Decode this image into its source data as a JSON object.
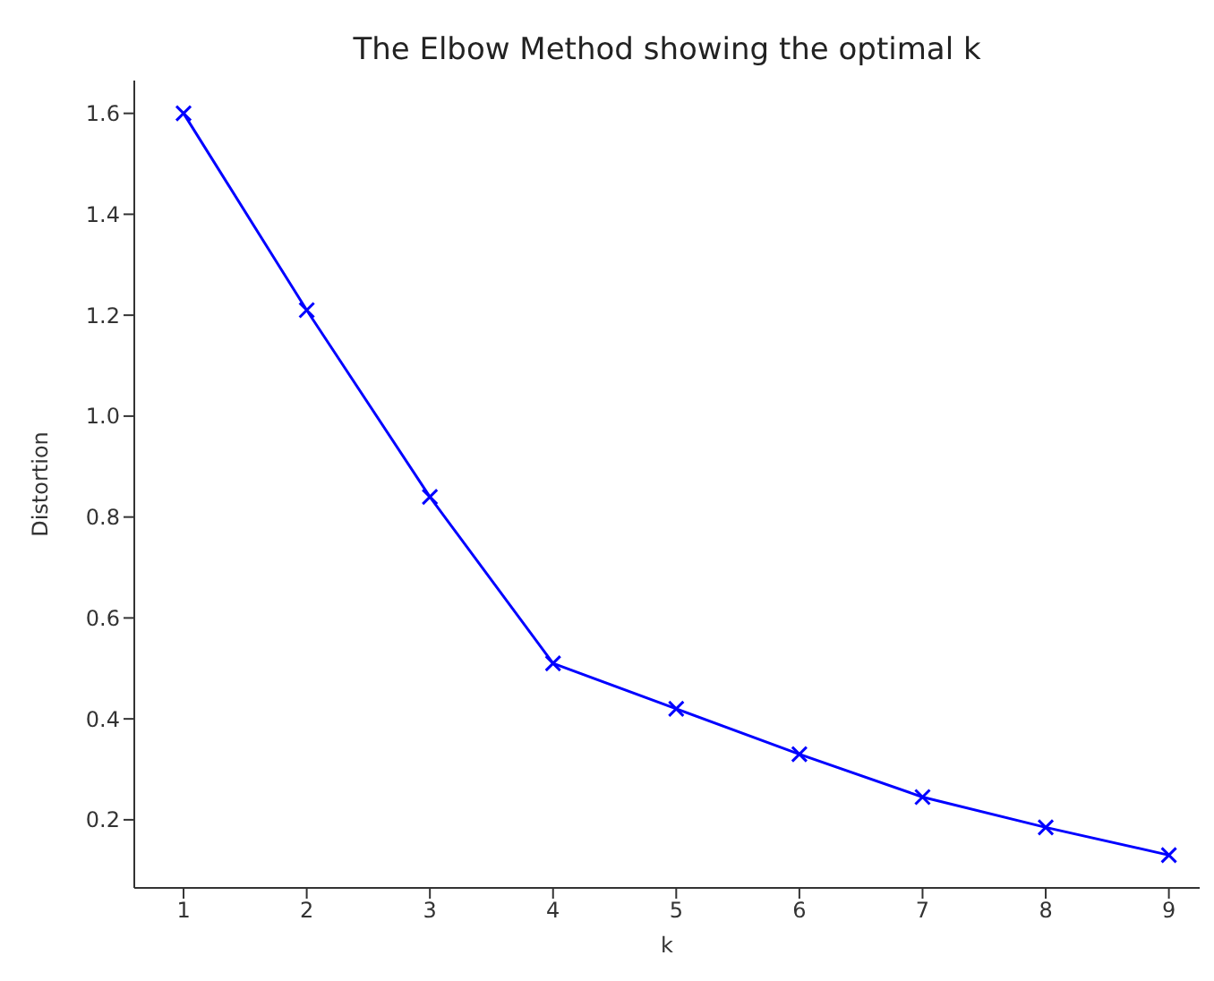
{
  "chart_data": {
    "type": "line",
    "title": "The Elbow Method showing the optimal k",
    "xlabel": "k",
    "ylabel": "Distortion",
    "x": [
      1,
      2,
      3,
      4,
      5,
      6,
      7,
      8,
      9
    ],
    "series": [
      {
        "color": "#0000ff",
        "values": [
          1.6,
          1.21,
          0.84,
          0.51,
          0.42,
          0.33,
          0.245,
          0.185,
          0.13
        ]
      }
    ],
    "xlim": [
      0.6,
      9.25
    ],
    "xticks": [
      1,
      2,
      3,
      4,
      5,
      6,
      7,
      8,
      9
    ],
    "ylim": [
      0.065,
      1.665
    ],
    "yticks": [
      0.2,
      0.4,
      0.6,
      0.8,
      {
        "value": 1,
        "label": "1.0"
      },
      1.2,
      1.4,
      1.6
    ],
    "grid": false,
    "legend": false,
    "marker": "cross",
    "line_style": "solid"
  }
}
